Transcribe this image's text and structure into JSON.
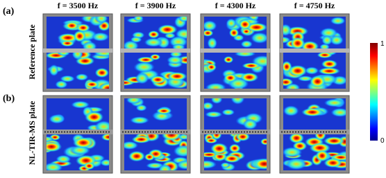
{
  "labels": {
    "a": "(a)",
    "b": "(b)"
  },
  "columns": [
    "f = 3500 Hz",
    "f = 3900 Hz",
    "f = 4300 Hz",
    "f = 4750 Hz"
  ],
  "rows": [
    "Reference plate",
    "NL-TIR-MS plate"
  ],
  "colorbar": {
    "max": 1,
    "min": 0
  }
}
